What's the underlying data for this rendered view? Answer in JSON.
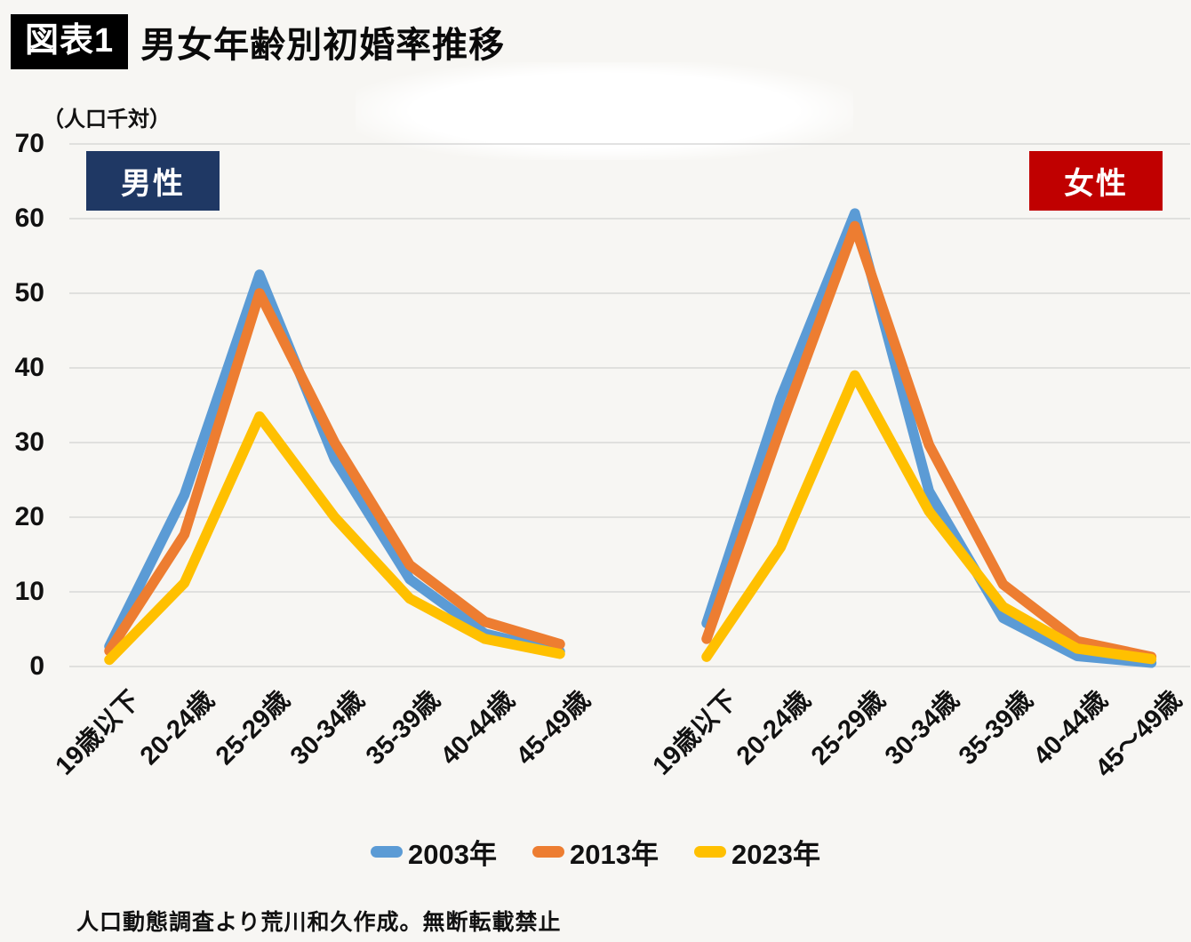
{
  "header": {
    "badge": "図表1",
    "title": "男女年齢別初婚率推移"
  },
  "y_axis": {
    "unit": "（人口千対）",
    "ticks": [
      0,
      10,
      20,
      30,
      40,
      50,
      60,
      70
    ],
    "min": 0,
    "max": 70
  },
  "panels": [
    {
      "id": "men",
      "label": "男性",
      "label_bg": "#1f3864"
    },
    {
      "id": "women",
      "label": "女性",
      "label_bg": "#c00000"
    }
  ],
  "legend": [
    {
      "label": "2003年",
      "color": "#5B9BD5"
    },
    {
      "label": "2013年",
      "color": "#ED7D31"
    },
    {
      "label": "2023年",
      "color": "#FFC000"
    }
  ],
  "footer": "人口動態調査より荒川和久作成。無断転載禁止",
  "chart_data": [
    {
      "type": "line",
      "title": "男性",
      "categories": [
        "19歳以下",
        "20-24歳",
        "25-29歳",
        "30-34歳",
        "35-39歳",
        "40-44歳",
        "45-49歳"
      ],
      "series": [
        {
          "name": "2003年",
          "color": "#5B9BD5",
          "values": [
            2.7,
            23.0,
            52.5,
            27.8,
            11.7,
            4.4,
            2.0
          ]
        },
        {
          "name": "2013年",
          "color": "#ED7D31",
          "values": [
            2.1,
            17.7,
            50.0,
            30.0,
            13.6,
            6.0,
            3.0
          ]
        },
        {
          "name": "2023年",
          "color": "#FFC000",
          "values": [
            0.9,
            11.2,
            33.5,
            20.0,
            9.1,
            3.7,
            1.7
          ]
        }
      ],
      "ylabel": "（人口千対）",
      "ylim": [
        0,
        70
      ],
      "grid": true,
      "legend_position": "bottom"
    },
    {
      "type": "line",
      "title": "女性",
      "categories": [
        "19歳以下",
        "20-24歳",
        "25-29歳",
        "30-34歳",
        "35-39歳",
        "40-44歳",
        "45〜49歳"
      ],
      "series": [
        {
          "name": "2003年",
          "color": "#5B9BD5",
          "values": [
            5.8,
            36.0,
            60.7,
            23.5,
            6.5,
            1.4,
            0.5
          ]
        },
        {
          "name": "2013年",
          "color": "#ED7D31",
          "values": [
            3.7,
            32.0,
            59.0,
            29.7,
            11.0,
            3.4,
            1.3
          ]
        },
        {
          "name": "2023年",
          "color": "#FFC000",
          "values": [
            1.3,
            16.0,
            39.0,
            20.8,
            8.0,
            2.4,
            1.0
          ]
        }
      ],
      "ylabel": "（人口千対）",
      "ylim": [
        0,
        70
      ],
      "grid": true,
      "legend_position": "bottom"
    }
  ]
}
